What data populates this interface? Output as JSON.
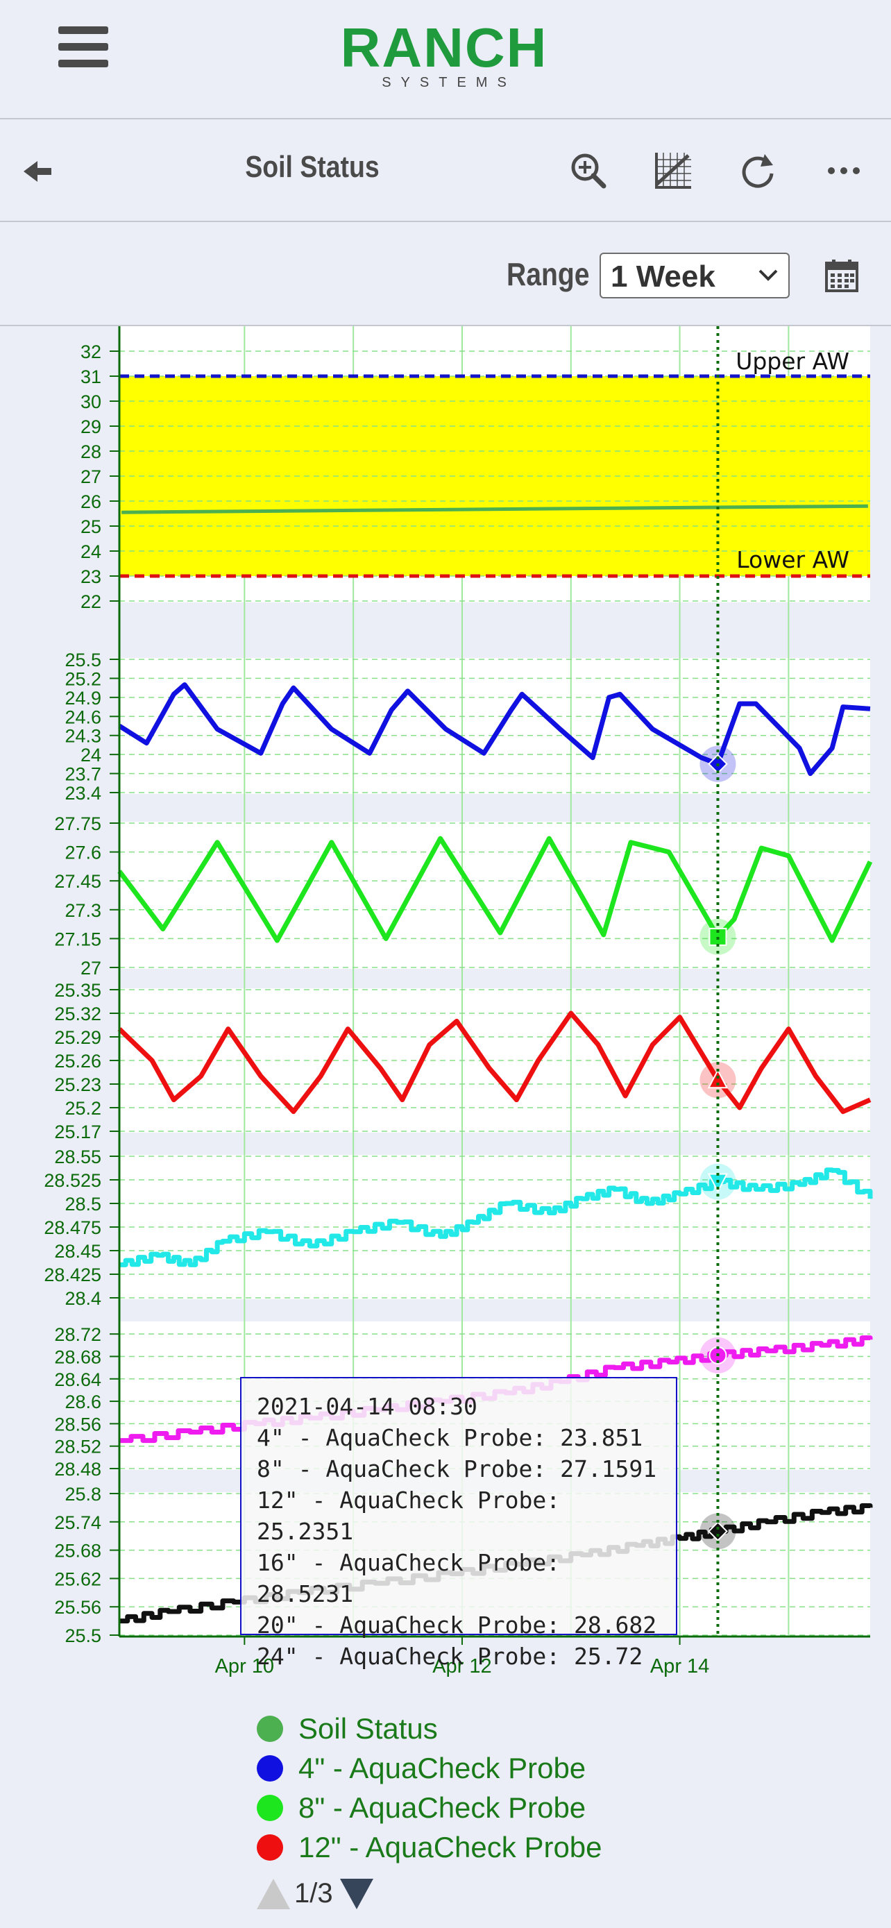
{
  "header": {
    "logo_main": "RANCH",
    "logo_sub": "SYSTEMS"
  },
  "toolbar": {
    "title": "Soil Status",
    "icons": [
      "back-arrow-icon",
      "zoom-in-icon",
      "chart-grid-icon",
      "refresh-icon",
      "more-icon"
    ]
  },
  "range": {
    "label": "Range",
    "selected": "1 Week"
  },
  "colors": {
    "soil_status": "#4caf50",
    "probe4": "#1010e0",
    "probe8": "#1ee61e",
    "probe12": "#ee1010",
    "probe16": "#22e8e8",
    "probe20": "#ee1cee",
    "probe24": "#111111",
    "upper_aw": "#1414c8",
    "lower_aw": "#dd1111",
    "aw_band": "#ffff00",
    "crosshair": "#0b6b0b",
    "axis_text": "#0b6b0b"
  },
  "chart_data": {
    "type": "line",
    "x_tick_labels": [
      "Apr 10",
      "Apr 12",
      "Apr 14"
    ],
    "x_range_days": [
      8.85,
      15.75
    ],
    "crosshair_day": 14.35,
    "panels": [
      {
        "id": "soil",
        "series_name": "Soil Status",
        "ylim": [
          22,
          32
        ],
        "ticks": [
          "22",
          "23",
          "24",
          "25",
          "26",
          "27",
          "28",
          "29",
          "30",
          "31",
          "32"
        ],
        "band": [
          23,
          31
        ],
        "upper_line": 31,
        "upper_label": "Upper AW",
        "lower_line": 23,
        "lower_label": "Lower AW",
        "generator": "linear",
        "start": 25.55,
        "end": 25.8
      },
      {
        "id": "p4",
        "series_name": "4\" - AquaCheck Probe",
        "ylim": [
          23.4,
          25.5
        ],
        "ticks": [
          "23.4",
          "23.7",
          "24",
          "24.3",
          "24.6",
          "24.9",
          "25.2",
          "25.5"
        ],
        "generator": "wave",
        "points": [
          [
            8.85,
            24.45
          ],
          [
            9.1,
            24.18
          ],
          [
            9.35,
            24.95
          ],
          [
            9.45,
            25.1
          ],
          [
            9.75,
            24.4
          ],
          [
            10.15,
            24.02
          ],
          [
            10.35,
            24.8
          ],
          [
            10.45,
            25.05
          ],
          [
            10.8,
            24.4
          ],
          [
            11.15,
            24.02
          ],
          [
            11.35,
            24.7
          ],
          [
            11.5,
            25.0
          ],
          [
            11.85,
            24.4
          ],
          [
            12.2,
            24.02
          ],
          [
            12.45,
            24.7
          ],
          [
            12.55,
            24.95
          ],
          [
            12.9,
            24.4
          ],
          [
            13.2,
            23.95
          ],
          [
            13.35,
            24.9
          ],
          [
            13.45,
            24.95
          ],
          [
            13.75,
            24.4
          ],
          [
            14.2,
            23.95
          ],
          [
            14.35,
            23.851
          ],
          [
            14.55,
            24.8
          ],
          [
            14.7,
            24.8
          ],
          [
            15.1,
            24.1
          ],
          [
            15.2,
            23.7
          ],
          [
            15.4,
            24.1
          ],
          [
            15.5,
            24.75
          ],
          [
            15.75,
            24.72
          ]
        ],
        "marker": "diamond",
        "value": 23.851
      },
      {
        "id": "p8",
        "series_name": "8\" - AquaCheck Probe",
        "ylim": [
          27,
          27.75
        ],
        "ticks": [
          "27",
          "27.15",
          "27.3",
          "27.45",
          "27.6",
          "27.75"
        ],
        "generator": "wave",
        "points": [
          [
            8.85,
            27.5
          ],
          [
            9.25,
            27.2
          ],
          [
            9.75,
            27.65
          ],
          [
            10.3,
            27.14
          ],
          [
            10.8,
            27.65
          ],
          [
            11.3,
            27.15
          ],
          [
            11.8,
            27.67
          ],
          [
            12.35,
            27.18
          ],
          [
            12.8,
            27.67
          ],
          [
            13.3,
            27.17
          ],
          [
            13.55,
            27.65
          ],
          [
            13.9,
            27.6
          ],
          [
            14.35,
            27.159
          ],
          [
            14.5,
            27.25
          ],
          [
            14.75,
            27.62
          ],
          [
            15.0,
            27.58
          ],
          [
            15.4,
            27.14
          ],
          [
            15.75,
            27.55
          ]
        ],
        "marker": "square",
        "value": 27.1591
      },
      {
        "id": "p12",
        "series_name": "12\" - AquaCheck Probe",
        "ylim": [
          25.17,
          25.35
        ],
        "ticks": [
          "25.17",
          "25.2",
          "25.23",
          "25.26",
          "25.29",
          "25.32",
          "25.35"
        ],
        "generator": "wave",
        "points": [
          [
            8.85,
            25.3
          ],
          [
            9.15,
            25.26
          ],
          [
            9.35,
            25.21
          ],
          [
            9.6,
            25.24
          ],
          [
            9.85,
            25.3
          ],
          [
            10.15,
            25.24
          ],
          [
            10.45,
            25.195
          ],
          [
            10.7,
            25.24
          ],
          [
            10.95,
            25.3
          ],
          [
            11.25,
            25.25
          ],
          [
            11.45,
            25.21
          ],
          [
            11.7,
            25.28
          ],
          [
            11.95,
            25.31
          ],
          [
            12.25,
            25.25
          ],
          [
            12.5,
            25.21
          ],
          [
            12.7,
            25.26
          ],
          [
            13.0,
            25.32
          ],
          [
            13.25,
            25.28
          ],
          [
            13.5,
            25.215
          ],
          [
            13.75,
            25.28
          ],
          [
            14.0,
            25.315
          ],
          [
            14.35,
            25.235
          ],
          [
            14.55,
            25.2
          ],
          [
            14.75,
            25.25
          ],
          [
            15.0,
            25.3
          ],
          [
            15.25,
            25.24
          ],
          [
            15.5,
            25.195
          ],
          [
            15.75,
            25.21
          ]
        ],
        "marker": "triangle-up",
        "value": 25.2351
      },
      {
        "id": "p16",
        "series_name": "16\" - AquaCheck Probe",
        "ylim": [
          28.4,
          28.55
        ],
        "ticks": [
          "28.4",
          "28.425",
          "28.45",
          "28.475",
          "28.5",
          "28.525",
          "28.55"
        ],
        "generator": "step",
        "points": [
          [
            8.85,
            28.435
          ],
          [
            9.2,
            28.445
          ],
          [
            9.5,
            28.435
          ],
          [
            9.8,
            28.46
          ],
          [
            10.2,
            28.47
          ],
          [
            10.6,
            28.455
          ],
          [
            11.0,
            28.47
          ],
          [
            11.4,
            28.48
          ],
          [
            11.8,
            28.465
          ],
          [
            12.1,
            28.48
          ],
          [
            12.4,
            28.5
          ],
          [
            12.8,
            28.49
          ],
          [
            13.1,
            28.505
          ],
          [
            13.4,
            28.515
          ],
          [
            13.7,
            28.5
          ],
          [
            14.0,
            28.51
          ],
          [
            14.35,
            28.523
          ],
          [
            14.7,
            28.515
          ],
          [
            15.1,
            28.52
          ],
          [
            15.4,
            28.535
          ],
          [
            15.75,
            28.505
          ]
        ],
        "marker": "triangle-down",
        "value": 28.5231
      },
      {
        "id": "p20",
        "series_name": "20\" - AquaCheck Probe",
        "ylim": [
          28.48,
          28.74
        ],
        "ticks": [
          "28.48",
          "28.52",
          "28.56",
          "28.6",
          "28.64",
          "28.68",
          "28.72"
        ],
        "generator": "step",
        "points": [
          [
            8.85,
            28.53
          ],
          [
            9.5,
            28.545
          ],
          [
            10.1,
            28.56
          ],
          [
            10.6,
            28.57
          ],
          [
            11.2,
            28.585
          ],
          [
            11.8,
            28.6
          ],
          [
            12.4,
            28.615
          ],
          [
            12.9,
            28.635
          ],
          [
            13.4,
            28.66
          ],
          [
            13.9,
            28.67
          ],
          [
            14.35,
            28.682
          ],
          [
            14.8,
            28.69
          ],
          [
            15.3,
            28.7
          ],
          [
            15.75,
            28.71
          ]
        ],
        "marker": "circle",
        "value": 28.682
      },
      {
        "id": "p24",
        "series_name": "24\" - AquaCheck Probe",
        "ylim": [
          25.5,
          25.8
        ],
        "ticks": [
          "25.5",
          "25.56",
          "25.62",
          "25.68",
          "25.74",
          "25.8"
        ],
        "generator": "step",
        "points": [
          [
            8.85,
            25.53
          ],
          [
            9.3,
            25.55
          ],
          [
            9.9,
            25.57
          ],
          [
            10.5,
            25.59
          ],
          [
            11.2,
            25.61
          ],
          [
            11.9,
            25.63
          ],
          [
            12.5,
            25.65
          ],
          [
            13.1,
            25.67
          ],
          [
            13.6,
            25.69
          ],
          [
            14.0,
            25.705
          ],
          [
            14.35,
            25.72
          ],
          [
            14.8,
            25.74
          ],
          [
            15.3,
            25.76
          ],
          [
            15.75,
            25.77
          ]
        ],
        "marker": "diamond",
        "value": 25.72
      }
    ]
  },
  "tooltip": {
    "time": "2021-04-14 08:30",
    "lines": [
      "4\" - AquaCheck Probe: 23.851",
      "8\" - AquaCheck Probe: 27.1591",
      "12\" - AquaCheck Probe: 25.2351",
      "16\" - AquaCheck Probe: 28.5231",
      "20\" - AquaCheck Probe: 28.682",
      "24\" - AquaCheck Probe: 25.72"
    ]
  },
  "legend": {
    "items": [
      {
        "label": "Soil Status",
        "color": "#4caf50"
      },
      {
        "label": "4\" - AquaCheck Probe",
        "color": "#1010e0"
      },
      {
        "label": "8\" - AquaCheck Probe",
        "color": "#1ee61e"
      },
      {
        "label": "12\" - AquaCheck Probe",
        "color": "#ee1010"
      }
    ],
    "pager": "1/3"
  }
}
